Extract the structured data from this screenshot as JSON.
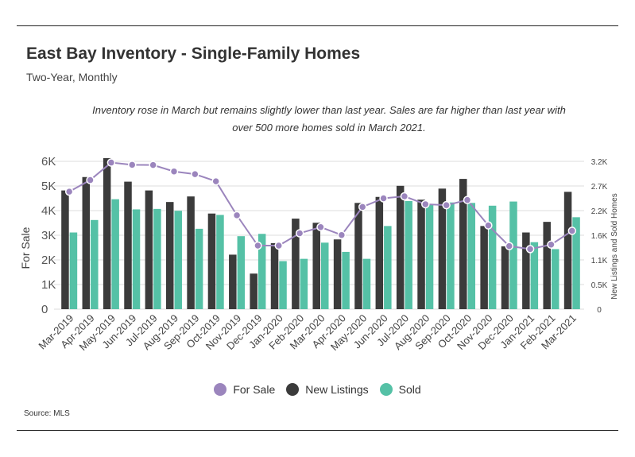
{
  "header": {
    "title": "East Bay Inventory - Single-Family Homes",
    "subtitle": "Two-Year, Monthly",
    "note_line1": "Inventory rose in March but remains slightly lower than last year. Sales are far higher than last year with",
    "note_line2": "over 500 more homes sold in March 2021."
  },
  "footer": {
    "source": "Source:  MLS"
  },
  "colors": {
    "for_sale": "#9b85bd",
    "new_listings": "#3b3b3b",
    "sold": "#55c1a6",
    "grid": "#dddddd"
  },
  "chart_data": {
    "type": "bar",
    "categories": [
      "Mar-2019",
      "Apr-2019",
      "May-2019",
      "Jun-2019",
      "Jul-2019",
      "Aug-2019",
      "Sep-2019",
      "Oct-2019",
      "Nov-2019",
      "Dec-2019",
      "Jan-2020",
      "Feb-2020",
      "Mar-2020",
      "Apr-2020",
      "May-2020",
      "Jun-2020",
      "Jul-2020",
      "Aug-2020",
      "Sep-2020",
      "Oct-2020",
      "Nov-2020",
      "Dec-2020",
      "Jan-2021",
      "Feb-2021",
      "Mar-2021"
    ],
    "series": [
      {
        "name": "New Listings",
        "kind": "bar",
        "axis": "right",
        "values": [
          2570,
          2860,
          3270,
          2760,
          2570,
          2320,
          2440,
          2070,
          1180,
          770,
          1430,
          1960,
          1870,
          1510,
          2300,
          2430,
          2670,
          2370,
          2610,
          2820,
          1800,
          1360,
          1660,
          1890,
          2540
        ]
      },
      {
        "name": "Sold",
        "kind": "bar",
        "axis": "right",
        "values": [
          1660,
          1930,
          2380,
          2160,
          2170,
          2130,
          1740,
          2040,
          1580,
          1630,
          1040,
          1090,
          1440,
          1240,
          1090,
          1800,
          2340,
          2270,
          2310,
          2300,
          2240,
          2330,
          1450,
          1300,
          1990
        ]
      },
      {
        "name": "For Sale",
        "kind": "line",
        "axis": "left",
        "values": [
          4770,
          5240,
          5950,
          5860,
          5850,
          5590,
          5480,
          5190,
          3810,
          2580,
          2580,
          3080,
          3330,
          3010,
          4150,
          4500,
          4580,
          4260,
          4220,
          4430,
          3400,
          2560,
          2440,
          2620,
          3180
        ]
      }
    ],
    "left_axis": {
      "label": "For Sale",
      "range": [
        0,
        6000
      ],
      "ticks": [
        "0",
        "1K",
        "2K",
        "3K",
        "4K",
        "5K",
        "6K"
      ]
    },
    "right_axis": {
      "label": "New Listings and Sold Homes",
      "range": [
        0,
        3200
      ],
      "ticks": [
        "0",
        "0.5K",
        "1.1K",
        "1.6K",
        "2.2K",
        "2.7K",
        "3.2K"
      ]
    },
    "legend": [
      "For Sale",
      "New Listings",
      "Sold"
    ],
    "legend_position": "bottom-center",
    "grid": true
  }
}
